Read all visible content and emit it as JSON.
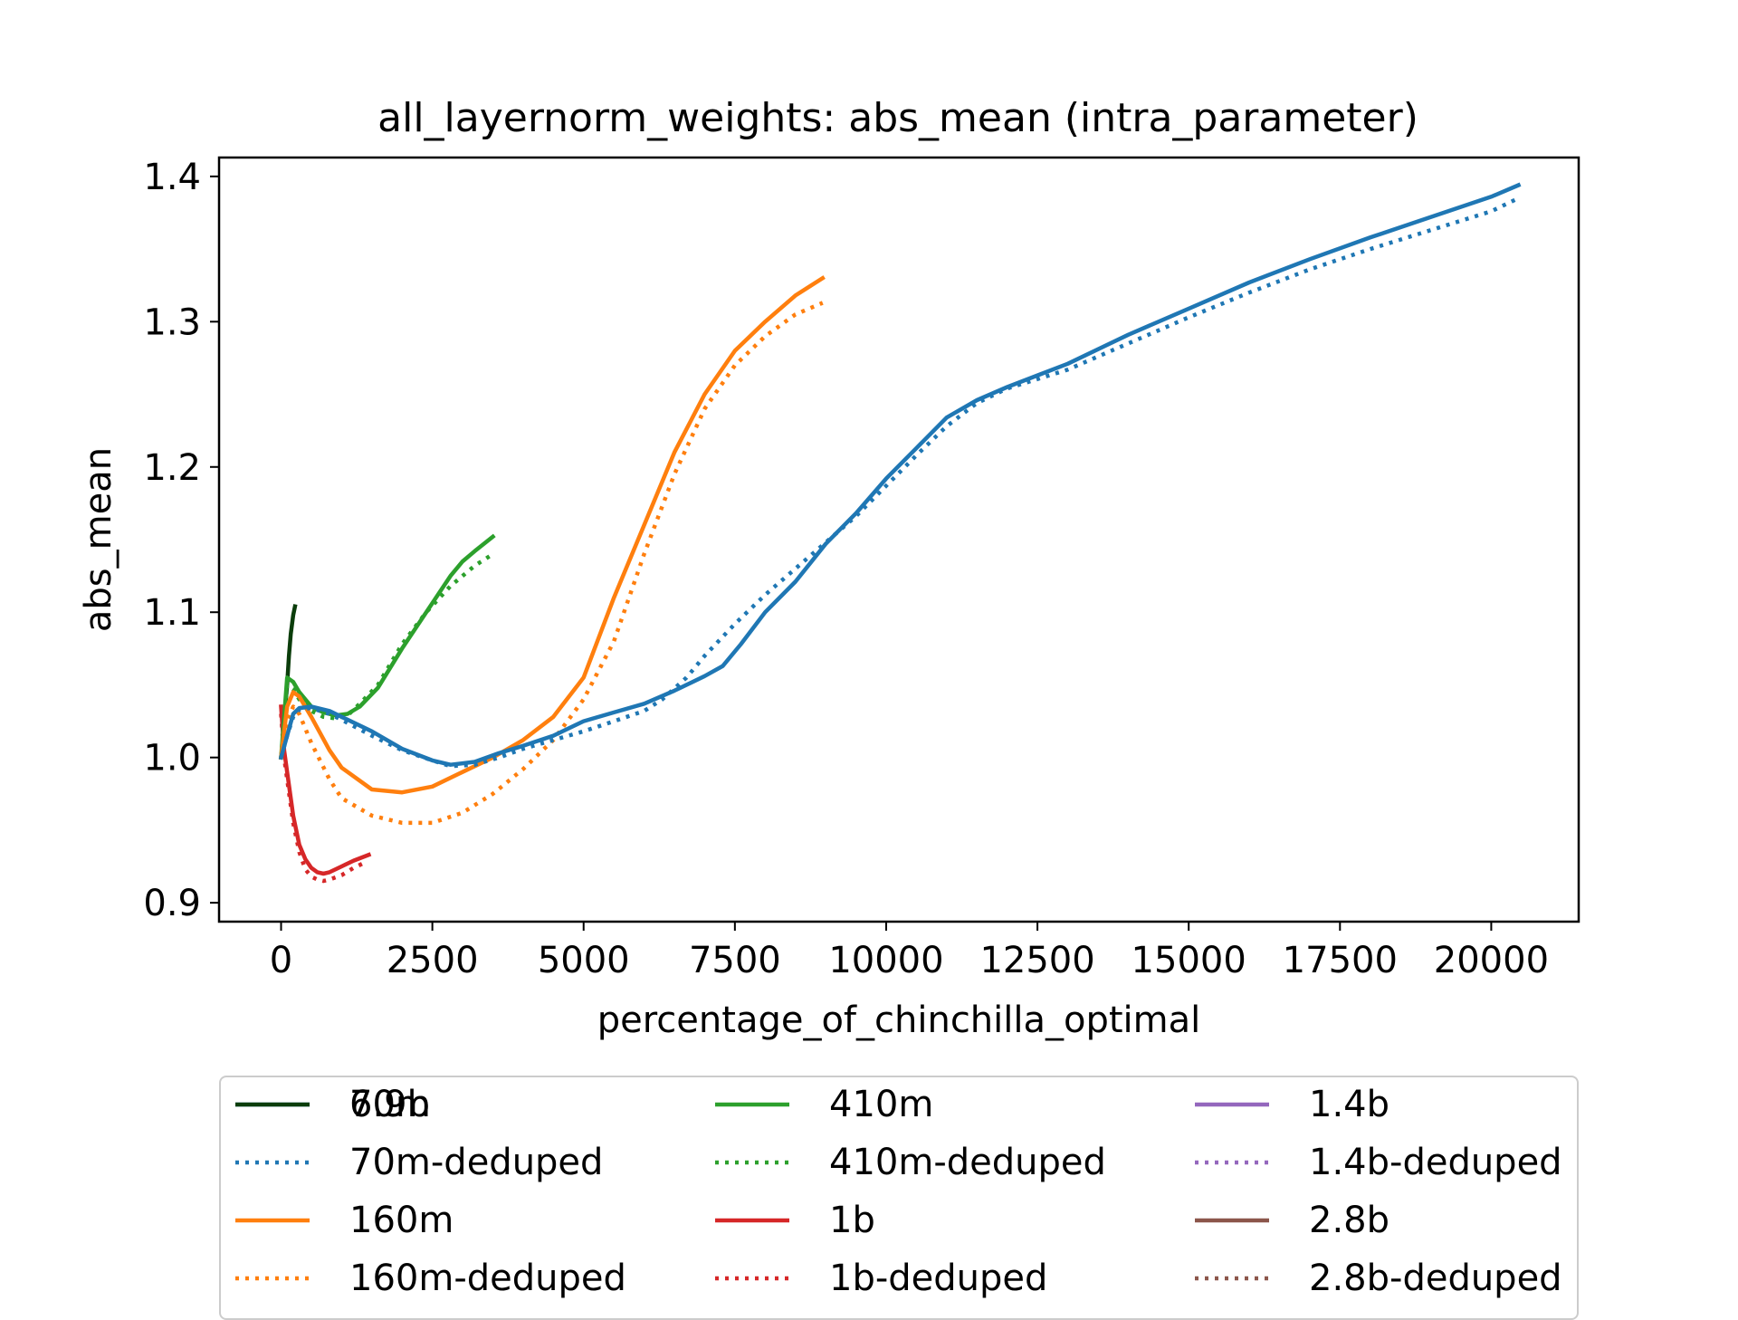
{
  "chart_data": {
    "type": "line",
    "title": "all_layernorm_weights: abs_mean (intra_parameter)",
    "xlabel": "percentage_of_chinchilla_optimal",
    "ylabel": "abs_mean",
    "xlim": [
      -1025,
      21445
    ],
    "ylim": [
      0.887,
      1.413
    ],
    "xticks": [
      0,
      2500,
      5000,
      7500,
      10000,
      12500,
      15000,
      17500,
      20000
    ],
    "xtick_labels": [
      "0",
      "2500",
      "5000",
      "7500",
      "10000",
      "12500",
      "15000",
      "17500",
      "20000"
    ],
    "yticks": [
      0.9,
      1.0,
      1.1,
      1.2,
      1.3,
      1.4
    ],
    "ytick_labels": [
      "0.9",
      "1.0",
      "1.1",
      "1.2",
      "1.3",
      "1.4"
    ],
    "grid": false,
    "legend": "below",
    "series": [
      {
        "name": "70m",
        "color": "#1f77b4",
        "style": "solid",
        "x": [
          0,
          100,
          200,
          300,
          500,
          800,
          1000,
          1500,
          2000,
          2500,
          2800,
          3200,
          3600,
          4000,
          4500,
          5000,
          5500,
          6000,
          6500,
          7000,
          7300,
          7600,
          8000,
          8500,
          9000,
          9500,
          10000,
          10500,
          11000,
          11500,
          12000,
          13000,
          14000,
          15000,
          16000,
          17000,
          18000,
          19000,
          20000,
          20450
        ],
        "y": [
          1.0,
          1.015,
          1.03,
          1.034,
          1.035,
          1.032,
          1.028,
          1.018,
          1.006,
          0.998,
          0.995,
          0.997,
          1.003,
          1.008,
          1.015,
          1.025,
          1.031,
          1.037,
          1.046,
          1.056,
          1.063,
          1.078,
          1.1,
          1.121,
          1.147,
          1.168,
          1.192,
          1.213,
          1.234,
          1.246,
          1.255,
          1.271,
          1.291,
          1.309,
          1.327,
          1.343,
          1.358,
          1.372,
          1.386,
          1.394
        ]
      },
      {
        "name": "70m-deduped",
        "color": "#1f77b4",
        "style": "dotted",
        "x": [
          0,
          100,
          200,
          300,
          500,
          800,
          1000,
          1500,
          2000,
          2500,
          2800,
          3200,
          3600,
          4000,
          4500,
          5000,
          5500,
          6000,
          6300,
          6700,
          7000,
          7500,
          8000,
          8500,
          9000,
          9500,
          10000,
          10500,
          11000,
          11500,
          12000,
          13000,
          14000,
          15000,
          16000,
          17000,
          18000,
          19000,
          20000,
          20450
        ],
        "y": [
          1.0,
          1.015,
          1.028,
          1.033,
          1.034,
          1.03,
          1.026,
          1.015,
          1.005,
          0.998,
          0.994,
          0.995,
          1.0,
          1.006,
          1.012,
          1.018,
          1.025,
          1.032,
          1.04,
          1.055,
          1.07,
          1.092,
          1.112,
          1.13,
          1.148,
          1.166,
          1.187,
          1.208,
          1.228,
          1.244,
          1.254,
          1.267,
          1.285,
          1.303,
          1.32,
          1.336,
          1.35,
          1.363,
          1.376,
          1.385
        ]
      },
      {
        "name": "160m",
        "color": "#ff7f0e",
        "style": "solid",
        "x": [
          0,
          100,
          200,
          300,
          500,
          800,
          1000,
          1500,
          2000,
          2500,
          3000,
          3500,
          4000,
          4500,
          5000,
          5500,
          6000,
          6500,
          7000,
          7500,
          8000,
          8500,
          8950
        ],
        "y": [
          1.0,
          1.035,
          1.045,
          1.042,
          1.028,
          1.005,
          0.993,
          0.978,
          0.976,
          0.98,
          0.99,
          1.0,
          1.012,
          1.028,
          1.055,
          1.11,
          1.16,
          1.21,
          1.25,
          1.28,
          1.3,
          1.318,
          1.33
        ]
      },
      {
        "name": "160m-deduped",
        "color": "#ff7f0e",
        "style": "dotted",
        "x": [
          0,
          100,
          200,
          300,
          500,
          800,
          1000,
          1500,
          2000,
          2500,
          3000,
          3500,
          4000,
          4500,
          5000,
          5500,
          6000,
          6500,
          7000,
          7500,
          8000,
          8500,
          8950
        ],
        "y": [
          1.0,
          1.025,
          1.035,
          1.03,
          1.01,
          0.985,
          0.972,
          0.96,
          0.955,
          0.955,
          0.962,
          0.975,
          0.992,
          1.012,
          1.04,
          1.08,
          1.14,
          1.195,
          1.24,
          1.27,
          1.29,
          1.305,
          1.313
        ]
      },
      {
        "name": "410m",
        "color": "#2ca02c",
        "style": "solid",
        "x": [
          0,
          100,
          200,
          300,
          500,
          700,
          900,
          1100,
          1300,
          1600,
          2000,
          2400,
          2800,
          3000,
          3200,
          3500
        ],
        "y": [
          1.0,
          1.055,
          1.052,
          1.045,
          1.035,
          1.031,
          1.029,
          1.03,
          1.035,
          1.048,
          1.075,
          1.1,
          1.125,
          1.135,
          1.142,
          1.152
        ]
      },
      {
        "name": "410m-deduped",
        "color": "#2ca02c",
        "style": "dotted",
        "x": [
          0,
          100,
          200,
          300,
          500,
          700,
          900,
          1100,
          1300,
          1600,
          2000,
          2400,
          2800,
          3000,
          3200,
          3500
        ],
        "y": [
          1.0,
          1.05,
          1.047,
          1.04,
          1.032,
          1.028,
          1.027,
          1.029,
          1.037,
          1.05,
          1.078,
          1.1,
          1.118,
          1.125,
          1.132,
          1.14
        ]
      },
      {
        "name": "1b",
        "color": "#d62728",
        "style": "solid",
        "x": [
          0,
          50,
          100,
          200,
          300,
          400,
          500,
          600,
          700,
          800,
          1000,
          1200,
          1450
        ],
        "y": [
          1.035,
          1.005,
          0.99,
          0.96,
          0.94,
          0.93,
          0.924,
          0.921,
          0.92,
          0.921,
          0.925,
          0.929,
          0.933
        ]
      },
      {
        "name": "1b-deduped",
        "color": "#d62728",
        "style": "dotted",
        "x": [
          0,
          50,
          100,
          200,
          300,
          400,
          500,
          600,
          700,
          800,
          1000,
          1200,
          1400
        ],
        "y": [
          1.03,
          1.0,
          0.985,
          0.955,
          0.935,
          0.923,
          0.918,
          0.916,
          0.915,
          0.916,
          0.919,
          0.924,
          0.928
        ]
      },
      {
        "name": "1.4b",
        "color": "#9467bd",
        "style": "solid",
        "x": [],
        "y": []
      },
      {
        "name": "1.4b-deduped",
        "color": "#9467bd",
        "style": "dotted",
        "x": [],
        "y": []
      },
      {
        "name": "2.8b",
        "color": "#8c564b",
        "style": "solid",
        "x": [],
        "y": []
      },
      {
        "name": "2.8b-deduped",
        "color": "#8c564b",
        "style": "dotted",
        "x": [],
        "y": []
      },
      {
        "name": "6.9b",
        "color": "#0b3d0b",
        "style": "solid",
        "x": [
          0,
          30,
          60,
          100,
          130,
          160,
          200,
          230
        ],
        "y": [
          1.0,
          1.01,
          1.03,
          1.05,
          1.07,
          1.085,
          1.098,
          1.104
        ]
      }
    ]
  }
}
